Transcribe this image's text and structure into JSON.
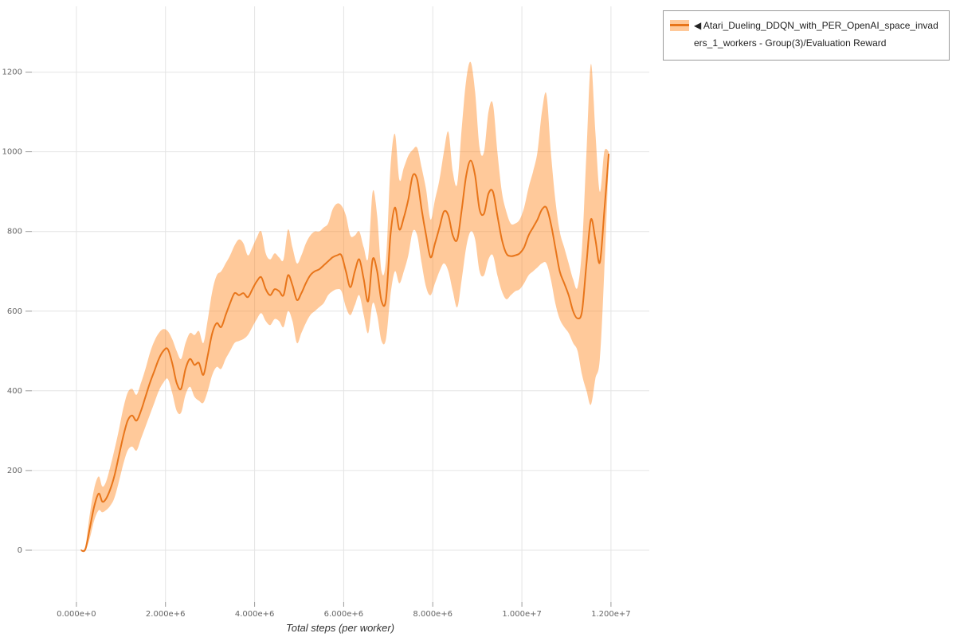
{
  "legend": {
    "marker": "◀",
    "label": "Atari_Dueling_DDQN_with_PER_OpenAI_space_invaders_1_workers - Group(3)/Evaluation Reward",
    "position": "top-right"
  },
  "chart_data": {
    "type": "line",
    "title": "",
    "xlabel": "Total steps (per worker)",
    "ylabel": "",
    "x_units": "steps (values below are in millions)",
    "xlim": [
      -1.0,
      12.86
    ],
    "ylim": [
      -130,
      1365
    ],
    "grid": true,
    "x_tick_values": [
      0,
      2,
      4,
      6,
      8,
      10,
      12
    ],
    "x_tick_labels": [
      "0.000e+0",
      "2.000e+6",
      "4.000e+6",
      "6.000e+6",
      "8.000e+6",
      "1.000e+7",
      "1.200e+7"
    ],
    "y_tick_values": [
      0,
      200,
      400,
      600,
      800,
      1000,
      1200
    ],
    "y_tick_labels": [
      "0",
      "200",
      "400",
      "600",
      "800",
      "1000",
      "1200"
    ],
    "colors": {
      "line": "#e8751a",
      "band": "#ff7f0e",
      "band_opacity": 0.42,
      "grid": "#e4e4e4",
      "tick": "#999999",
      "tick_text": "#666666"
    },
    "series": [
      {
        "name": "Atari_Dueling_DDQN_with_PER_OpenAI_space_invaders_1_workers - Group(3)/Evaluation Reward",
        "x": [
          0.1,
          0.2,
          0.3,
          0.4,
          0.5,
          0.58,
          0.66,
          0.75,
          0.85,
          0.95,
          1.05,
          1.15,
          1.25,
          1.35,
          1.45,
          1.55,
          1.65,
          1.75,
          1.85,
          1.95,
          2.05,
          2.15,
          2.25,
          2.35,
          2.45,
          2.55,
          2.65,
          2.75,
          2.85,
          2.95,
          3.05,
          3.15,
          3.25,
          3.35,
          3.45,
          3.55,
          3.65,
          3.75,
          3.85,
          3.95,
          4.05,
          4.15,
          4.25,
          4.35,
          4.45,
          4.55,
          4.65,
          4.75,
          4.85,
          4.95,
          5.05,
          5.15,
          5.25,
          5.35,
          5.45,
          5.55,
          5.65,
          5.75,
          5.85,
          5.95,
          6.05,
          6.15,
          6.25,
          6.35,
          6.45,
          6.55,
          6.65,
          6.75,
          6.85,
          6.95,
          7.05,
          7.15,
          7.25,
          7.35,
          7.45,
          7.55,
          7.65,
          7.75,
          7.85,
          7.95,
          8.05,
          8.15,
          8.25,
          8.35,
          8.45,
          8.55,
          8.65,
          8.75,
          8.85,
          8.95,
          9.05,
          9.15,
          9.25,
          9.35,
          9.45,
          9.55,
          9.65,
          9.75,
          9.85,
          9.95,
          10.05,
          10.15,
          10.25,
          10.35,
          10.45,
          10.55,
          10.65,
          10.75,
          10.85,
          10.95,
          11.05,
          11.15,
          11.25,
          11.35,
          11.45,
          11.55,
          11.65,
          11.75,
          11.85,
          11.95
        ],
        "mean": [
          0,
          2,
          55,
          110,
          142,
          122,
          128,
          150,
          185,
          235,
          285,
          325,
          338,
          325,
          350,
          385,
          420,
          450,
          480,
          500,
          505,
          470,
          420,
          405,
          455,
          480,
          465,
          470,
          440,
          490,
          545,
          570,
          560,
          590,
          620,
          645,
          640,
          645,
          635,
          655,
          675,
          685,
          655,
          640,
          655,
          650,
          640,
          690,
          665,
          628,
          645,
          670,
          690,
          700,
          705,
          715,
          725,
          735,
          740,
          740,
          700,
          660,
          700,
          730,
          680,
          625,
          730,
          700,
          625,
          630,
          790,
          860,
          805,
          835,
          880,
          940,
          930,
          855,
          790,
          735,
          770,
          810,
          850,
          840,
          790,
          780,
          855,
          940,
          978,
          940,
          855,
          845,
          895,
          900,
          840,
          780,
          745,
          738,
          740,
          745,
          760,
          790,
          810,
          830,
          855,
          860,
          820,
          760,
          700,
          670,
          640,
          600,
          582,
          600,
          720,
          830,
          780,
          722,
          850,
          995
        ],
        "lower": [
          0,
          0,
          30,
          75,
          100,
          95,
          100,
          110,
          130,
          170,
          215,
          250,
          260,
          250,
          280,
          310,
          340,
          370,
          400,
          420,
          430,
          395,
          350,
          345,
          390,
          410,
          385,
          375,
          370,
          400,
          440,
          460,
          455,
          480,
          500,
          520,
          525,
          530,
          540,
          560,
          580,
          595,
          575,
          565,
          580,
          575,
          560,
          600,
          575,
          520,
          545,
          570,
          590,
          600,
          610,
          620,
          640,
          650,
          655,
          650,
          610,
          590,
          615,
          640,
          590,
          545,
          620,
          590,
          525,
          530,
          640,
          700,
          670,
          700,
          740,
          800,
          790,
          720,
          660,
          640,
          670,
          700,
          720,
          700,
          650,
          610,
          680,
          760,
          800,
          780,
          700,
          690,
          730,
          740,
          690,
          650,
          630,
          640,
          650,
          655,
          670,
          690,
          700,
          710,
          720,
          720,
          680,
          620,
          580,
          560,
          545,
          520,
          500,
          440,
          400,
          365,
          430,
          480,
          700,
          980
        ],
        "upper": [
          0,
          10,
          90,
          155,
          185,
          160,
          170,
          205,
          250,
          300,
          355,
          395,
          405,
          390,
          420,
          455,
          495,
          525,
          545,
          555,
          550,
          530,
          500,
          480,
          520,
          545,
          540,
          550,
          520,
          580,
          650,
          690,
          700,
          720,
          740,
          765,
          780,
          770,
          740,
          760,
          785,
          800,
          745,
          730,
          745,
          735,
          730,
          805,
          760,
          720,
          740,
          770,
          790,
          800,
          800,
          810,
          820,
          855,
          870,
          865,
          840,
          790,
          790,
          800,
          760,
          735,
          900,
          840,
          700,
          730,
          960,
          1045,
          930,
          960,
          990,
          1005,
          1010,
          960,
          905,
          830,
          880,
          930,
          1000,
          1050,
          950,
          920,
          1060,
          1180,
          1225,
          1150,
          1010,
          1000,
          1100,
          1120,
          1000,
          900,
          850,
          820,
          820,
          830,
          860,
          910,
          950,
          1000,
          1100,
          1145,
          1000,
          880,
          800,
          760,
          720,
          680,
          660,
          760,
          1000,
          1220,
          1050,
          900,
          1000,
          1000
        ]
      }
    ]
  }
}
